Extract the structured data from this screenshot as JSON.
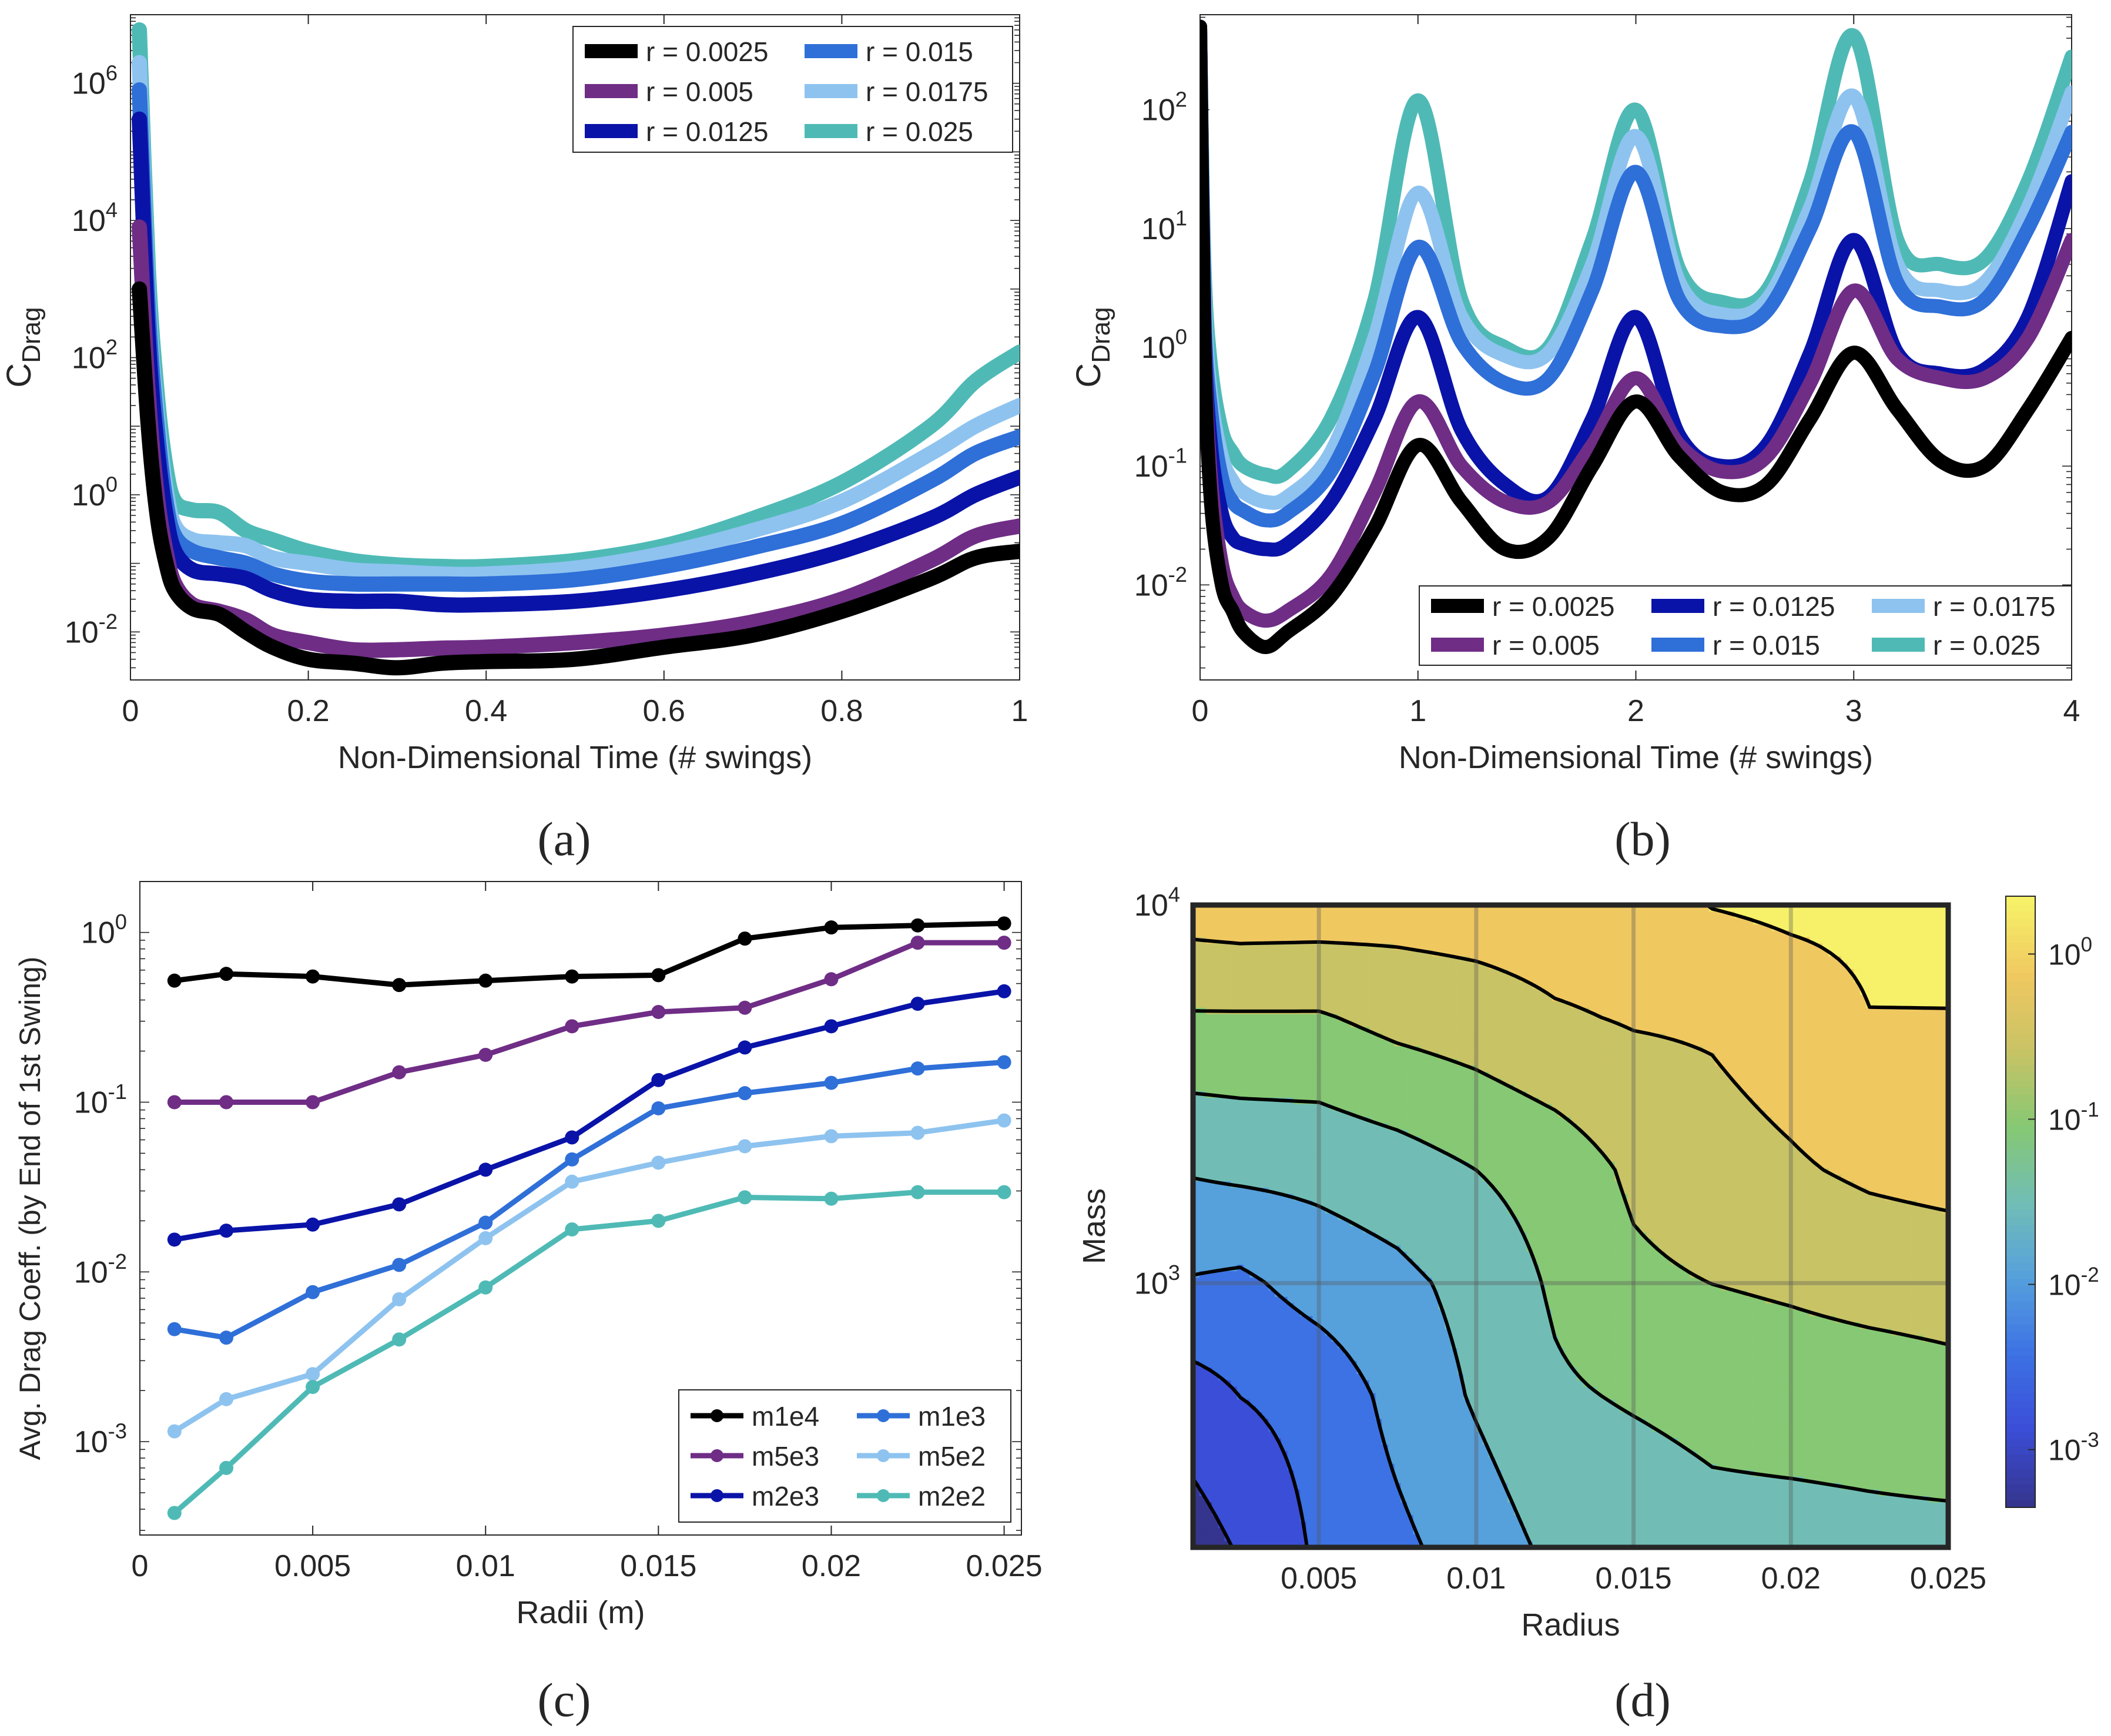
{
  "figure": {
    "caption_a": "(a)",
    "caption_b": "(b)",
    "caption_c": "(c)",
    "caption_d": "(d)"
  },
  "chart_data": [
    {
      "id": "a",
      "type": "line",
      "scale_y": "log",
      "title": "",
      "xlabel": "Non-Dimensional Time (# swings)",
      "ylabel_main": "C",
      "ylabel_sub": "Drag",
      "xlim": [
        0,
        1
      ],
      "ylim_log10": [
        -2.7,
        7
      ],
      "x_ticks": [
        0,
        0.2,
        0.4,
        0.6,
        0.8,
        1
      ],
      "x_tick_labels": [
        "0",
        "0.2",
        "0.4",
        "0.6",
        "0.8",
        "1"
      ],
      "y_ticks_exp": [
        -2,
        0,
        2,
        4,
        6
      ],
      "y_tick_base": "10",
      "y_tick_exps": [
        "-2",
        "0",
        "2",
        "4",
        "6"
      ],
      "legend_position": "top-right",
      "legend_columns": 2,
      "series": [
        {
          "name": "r = 0.0025",
          "color": "#000000",
          "x": [
            0.01,
            0.02,
            0.03,
            0.04,
            0.05,
            0.07,
            0.1,
            0.13,
            0.16,
            0.2,
            0.25,
            0.3,
            0.35,
            0.4,
            0.5,
            0.6,
            0.7,
            0.8,
            0.9,
            0.95,
            1.0
          ],
          "y": [
            1000,
            10,
            0.5,
            0.1,
            0.04,
            0.022,
            0.018,
            0.01,
            0.006,
            0.004,
            0.0035,
            0.003,
            0.0035,
            0.0037,
            0.004,
            0.006,
            0.009,
            0.02,
            0.06,
            0.12,
            0.15
          ]
        },
        {
          "name": "r = 0.005",
          "color": "#6f2d86",
          "x": [
            0.01,
            0.02,
            0.03,
            0.04,
            0.05,
            0.07,
            0.1,
            0.13,
            0.16,
            0.2,
            0.25,
            0.3,
            0.35,
            0.4,
            0.5,
            0.6,
            0.7,
            0.8,
            0.9,
            0.95,
            1.0
          ],
          "y": [
            8000,
            30,
            1,
            0.15,
            0.05,
            0.025,
            0.02,
            0.015,
            0.009,
            0.007,
            0.0055,
            0.0055,
            0.0058,
            0.006,
            0.007,
            0.009,
            0.014,
            0.03,
            0.11,
            0.25,
            0.35
          ]
        },
        {
          "name": "r = 0.0125",
          "color": "#0a13a8",
          "x": [
            0.01,
            0.02,
            0.03,
            0.04,
            0.05,
            0.07,
            0.1,
            0.13,
            0.16,
            0.2,
            0.25,
            0.3,
            0.35,
            0.4,
            0.5,
            0.6,
            0.7,
            0.8,
            0.9,
            0.95,
            1.0
          ],
          "y": [
            300000,
            200,
            5,
            0.5,
            0.15,
            0.08,
            0.07,
            0.06,
            0.04,
            0.03,
            0.028,
            0.028,
            0.025,
            0.025,
            0.028,
            0.04,
            0.07,
            0.15,
            0.45,
            1.0,
            1.8
          ]
        },
        {
          "name": "r = 0.015",
          "color": "#2f6fd8",
          "x": [
            0.01,
            0.02,
            0.03,
            0.04,
            0.05,
            0.07,
            0.1,
            0.13,
            0.16,
            0.2,
            0.25,
            0.3,
            0.35,
            0.4,
            0.5,
            0.6,
            0.7,
            0.8,
            0.9,
            0.95,
            1.0
          ],
          "y": [
            800000,
            500,
            10,
            0.8,
            0.25,
            0.15,
            0.12,
            0.1,
            0.07,
            0.055,
            0.05,
            0.05,
            0.05,
            0.05,
            0.058,
            0.09,
            0.17,
            0.38,
            1.6,
            4,
            7
          ]
        },
        {
          "name": "r = 0.0175",
          "color": "#8ec3ef",
          "x": [
            0.01,
            0.02,
            0.03,
            0.04,
            0.05,
            0.07,
            0.1,
            0.13,
            0.16,
            0.2,
            0.25,
            0.3,
            0.35,
            0.4,
            0.5,
            0.6,
            0.7,
            0.8,
            0.9,
            0.95,
            1.0
          ],
          "y": [
            2000000,
            800,
            15,
            1.2,
            0.35,
            0.22,
            0.2,
            0.18,
            0.12,
            0.1,
            0.08,
            0.075,
            0.07,
            0.07,
            0.085,
            0.14,
            0.3,
            0.8,
            4,
            10,
            20
          ]
        },
        {
          "name": "r = 0.025",
          "color": "#4fbab5",
          "x": [
            0.01,
            0.02,
            0.03,
            0.04,
            0.05,
            0.07,
            0.1,
            0.13,
            0.16,
            0.2,
            0.25,
            0.3,
            0.35,
            0.4,
            0.5,
            0.6,
            0.7,
            0.8,
            0.9,
            0.95,
            1.0
          ],
          "y": [
            6000000,
            2000,
            30,
            2.5,
            0.8,
            0.6,
            0.55,
            0.3,
            0.22,
            0.15,
            0.11,
            0.095,
            0.09,
            0.09,
            0.11,
            0.18,
            0.45,
            1.5,
            10,
            45,
            120
          ]
        }
      ]
    },
    {
      "id": "b",
      "type": "line",
      "scale_y": "log",
      "title": "",
      "xlabel": "Non-Dimensional Time (# swings)",
      "ylabel_main": "C",
      "ylabel_sub": "Drag",
      "xlim": [
        0,
        4
      ],
      "ylim_log10": [
        -2.8,
        2.8
      ],
      "x_ticks": [
        0,
        1,
        2,
        3,
        4
      ],
      "x_tick_labels": [
        "0",
        "1",
        "2",
        "3",
        "4"
      ],
      "y_ticks_exp": [
        -2,
        -1,
        0,
        1,
        2
      ],
      "y_tick_base": "10",
      "y_tick_exps": [
        "-2",
        "-1",
        "0",
        "1",
        "2"
      ],
      "legend_position": "bottom-right",
      "legend_columns": 3,
      "series": [
        {
          "name": "r = 0.0025",
          "color": "#000000",
          "x": [
            0,
            0.02,
            0.05,
            0.1,
            0.15,
            0.2,
            0.3,
            0.4,
            0.6,
            0.8,
            1.0,
            1.2,
            1.4,
            1.6,
            1.8,
            2.0,
            2.2,
            2.4,
            2.6,
            2.8,
            3.0,
            3.2,
            3.4,
            3.6,
            3.8,
            4.0
          ],
          "y": [
            500,
            1,
            0.05,
            0.01,
            0.006,
            0.004,
            0.003,
            0.004,
            0.008,
            0.03,
            0.15,
            0.05,
            0.02,
            0.025,
            0.1,
            0.35,
            0.12,
            0.06,
            0.07,
            0.25,
            0.9,
            0.3,
            0.11,
            0.1,
            0.3,
            1.2
          ]
        },
        {
          "name": "r = 0.005",
          "color": "#6f2d86",
          "x": [
            0,
            0.02,
            0.05,
            0.1,
            0.15,
            0.2,
            0.3,
            0.4,
            0.6,
            0.8,
            1.0,
            1.2,
            1.4,
            1.6,
            1.8,
            2.0,
            2.2,
            2.4,
            2.6,
            2.8,
            3.0,
            3.2,
            3.4,
            3.6,
            3.8,
            4.0
          ],
          "y": [
            500,
            1.2,
            0.08,
            0.015,
            0.008,
            0.006,
            0.005,
            0.006,
            0.012,
            0.06,
            0.35,
            0.1,
            0.05,
            0.05,
            0.15,
            0.55,
            0.15,
            0.09,
            0.12,
            0.5,
            3,
            0.8,
            0.55,
            0.55,
            1.2,
            8
          ]
        },
        {
          "name": "r = 0.0125",
          "color": "#0a13a8",
          "x": [
            0,
            0.02,
            0.05,
            0.1,
            0.15,
            0.2,
            0.3,
            0.4,
            0.6,
            0.8,
            1.0,
            1.2,
            1.4,
            1.6,
            1.8,
            2.0,
            2.2,
            2.4,
            2.6,
            2.8,
            3.0,
            3.2,
            3.4,
            3.6,
            3.8,
            4.0
          ],
          "y": [
            500,
            1.5,
            0.15,
            0.04,
            0.025,
            0.022,
            0.02,
            0.022,
            0.05,
            0.25,
            1.8,
            0.2,
            0.07,
            0.055,
            0.25,
            1.8,
            0.18,
            0.1,
            0.15,
            0.9,
            8,
            0.9,
            0.6,
            0.65,
            1.8,
            25
          ]
        },
        {
          "name": "r = 0.015",
          "color": "#2f6fd8",
          "x": [
            0,
            0.02,
            0.05,
            0.1,
            0.15,
            0.2,
            0.3,
            0.4,
            0.6,
            0.8,
            1.0,
            1.2,
            1.4,
            1.6,
            1.8,
            2.0,
            2.2,
            2.4,
            2.6,
            2.8,
            3.0,
            3.2,
            3.4,
            3.6,
            3.8,
            4.0
          ],
          "y": [
            500,
            2,
            0.3,
            0.08,
            0.05,
            0.042,
            0.035,
            0.04,
            0.09,
            0.6,
            7,
            1.1,
            0.5,
            0.55,
            3,
            30,
            2.5,
            1.5,
            2.0,
            10,
            65,
            3.5,
            2.2,
            2.5,
            10,
            65
          ]
        },
        {
          "name": "r = 0.0175",
          "color": "#8ec3ef",
          "x": [
            0,
            0.02,
            0.05,
            0.1,
            0.15,
            0.2,
            0.3,
            0.4,
            0.6,
            0.8,
            1.0,
            1.2,
            1.4,
            1.6,
            1.8,
            2.0,
            2.2,
            2.4,
            2.6,
            2.8,
            3.0,
            3.2,
            3.4,
            3.6,
            3.8,
            4.0
          ],
          "y": [
            500,
            3,
            0.4,
            0.12,
            0.075,
            0.06,
            0.05,
            0.055,
            0.13,
            1.2,
            20,
            1.8,
            0.85,
            0.9,
            5,
            60,
            3.5,
            1.9,
            2.5,
            15,
            130,
            5,
            3.0,
            3.5,
            15,
            140
          ]
        },
        {
          "name": "r = 0.025",
          "color": "#4fbab5",
          "x": [
            0,
            0.02,
            0.05,
            0.1,
            0.15,
            0.2,
            0.3,
            0.4,
            0.6,
            0.8,
            1.0,
            1.2,
            1.4,
            1.6,
            1.8,
            2.0,
            2.2,
            2.4,
            2.6,
            2.8,
            3.0,
            3.2,
            3.4,
            3.6,
            3.8,
            4.0
          ],
          "y": [
            500,
            5,
            0.7,
            0.2,
            0.13,
            0.1,
            0.085,
            0.09,
            0.25,
            2.5,
            120,
            2.5,
            1.0,
            1.0,
            8,
            100,
            4.5,
            2.4,
            3.0,
            25,
            420,
            8,
            5.0,
            5.5,
            25,
            280
          ]
        }
      ]
    },
    {
      "id": "c",
      "type": "line",
      "scale_y": "log",
      "title": "",
      "xlabel": "Radii (m)",
      "ylabel": "Avg. Drag Coeff. (by End of 1st Swing)",
      "xlim": [
        0,
        0.0255
      ],
      "ylim_log10": [
        -3.55,
        0.3
      ],
      "x_ticks": [
        0,
        0.005,
        0.01,
        0.015,
        0.02,
        0.025
      ],
      "x_tick_labels": [
        "0",
        "0.005",
        "0.01",
        "0.015",
        "0.02",
        "0.025"
      ],
      "y_ticks_exp": [
        -3,
        -2,
        -1,
        0
      ],
      "y_tick_base": "10",
      "y_tick_exps": [
        "-3",
        "-2",
        "-1",
        "0"
      ],
      "legend_position": "bottom-right",
      "legend_columns": 2,
      "x": [
        0.001,
        0.0025,
        0.005,
        0.0075,
        0.01,
        0.0125,
        0.015,
        0.0175,
        0.02,
        0.0225,
        0.025
      ],
      "series": [
        {
          "name": "m1e4",
          "color": "#000000",
          "values": [
            0.52,
            0.57,
            0.55,
            0.49,
            0.52,
            0.55,
            0.56,
            0.92,
            1.07,
            1.1,
            1.13
          ]
        },
        {
          "name": "m5e3",
          "color": "#6f2d86",
          "values": [
            0.1,
            0.1,
            0.1,
            0.15,
            0.19,
            0.28,
            0.34,
            0.36,
            0.53,
            0.87,
            0.87
          ]
        },
        {
          "name": "m2e3",
          "color": "#0a13a8",
          "values": [
            0.0155,
            0.0175,
            0.019,
            0.025,
            0.04,
            0.062,
            0.135,
            0.21,
            0.28,
            0.38,
            0.45
          ]
        },
        {
          "name": "m1e3",
          "color": "#2f6fd8",
          "values": [
            0.0046,
            0.0041,
            0.0076,
            0.011,
            0.0195,
            0.046,
            0.092,
            0.113,
            0.13,
            0.158,
            0.172
          ]
        },
        {
          "name": "m5e2",
          "color": "#8ec3ef",
          "values": [
            0.00115,
            0.00178,
            0.0025,
            0.0069,
            0.0158,
            0.034,
            0.044,
            0.055,
            0.063,
            0.066,
            0.078
          ]
        },
        {
          "name": "m2e2",
          "color": "#4fbab5",
          "values": [
            0.00038,
            0.0007,
            0.0021,
            0.004,
            0.0081,
            0.0178,
            0.02,
            0.0275,
            0.027,
            0.0295,
            0.0295
          ]
        }
      ]
    },
    {
      "id": "d",
      "type": "heatmap",
      "title": "",
      "xlabel": "Radius",
      "ylabel": "Mass",
      "xlim": [
        0.001,
        0.025
      ],
      "ylim_log10": [
        2.301,
        4.0
      ],
      "x_tick_labels": [
        "0.005",
        "0.01",
        "0.015",
        "0.02",
        "0.025"
      ],
      "x_ticks": [
        0.005,
        0.01,
        0.015,
        0.02,
        0.025
      ],
      "y_ticks_exp": [
        3,
        4
      ],
      "y_tick_base": "10",
      "y_tick_exps": [
        "3",
        "4"
      ],
      "colorbar_ticks_exp": [
        -3,
        -2,
        -1,
        0
      ],
      "colorbar_tick_exps": [
        "-3",
        "-2",
        "-1",
        "0"
      ],
      "colorbar_range_log10": [
        -3.35,
        0.35
      ],
      "contour_levels_log10": [
        -3.2,
        -2.75,
        -2.3,
        -1.85,
        -1.4,
        -0.95,
        -0.5,
        -0.05,
        0.3
      ],
      "level_colors": [
        "#35358f",
        "#3b4ed8",
        "#3d72e4",
        "#56a0dc",
        "#71bdb5",
        "#86c873",
        "#c8c365",
        "#f0c860",
        "#f6f168"
      ],
      "radii": [
        0.001,
        0.0025,
        0.005,
        0.0075,
        0.01,
        0.0125,
        0.015,
        0.0175,
        0.02,
        0.0225,
        0.025
      ],
      "masses": [
        200,
        500,
        1000,
        2000,
        5000,
        10000
      ],
      "avg_drag_coeff": [
        [
          0.00038,
          0.0007,
          0.0021,
          0.004,
          0.0081,
          0.0178,
          0.02,
          0.0275,
          0.027,
          0.0295,
          0.0295
        ],
        [
          0.00115,
          0.00178,
          0.0025,
          0.0069,
          0.0158,
          0.034,
          0.044,
          0.055,
          0.063,
          0.066,
          0.078
        ],
        [
          0.0046,
          0.0041,
          0.0076,
          0.011,
          0.0195,
          0.046,
          0.092,
          0.113,
          0.13,
          0.158,
          0.172
        ],
        [
          0.0155,
          0.0175,
          0.019,
          0.025,
          0.04,
          0.062,
          0.135,
          0.21,
          0.28,
          0.38,
          0.45
        ],
        [
          0.1,
          0.1,
          0.1,
          0.15,
          0.19,
          0.28,
          0.34,
          0.36,
          0.53,
          0.87,
          0.87
        ],
        [
          0.52,
          0.57,
          0.55,
          0.49,
          0.52,
          0.55,
          0.56,
          0.92,
          1.07,
          1.1,
          1.13
        ]
      ]
    }
  ]
}
